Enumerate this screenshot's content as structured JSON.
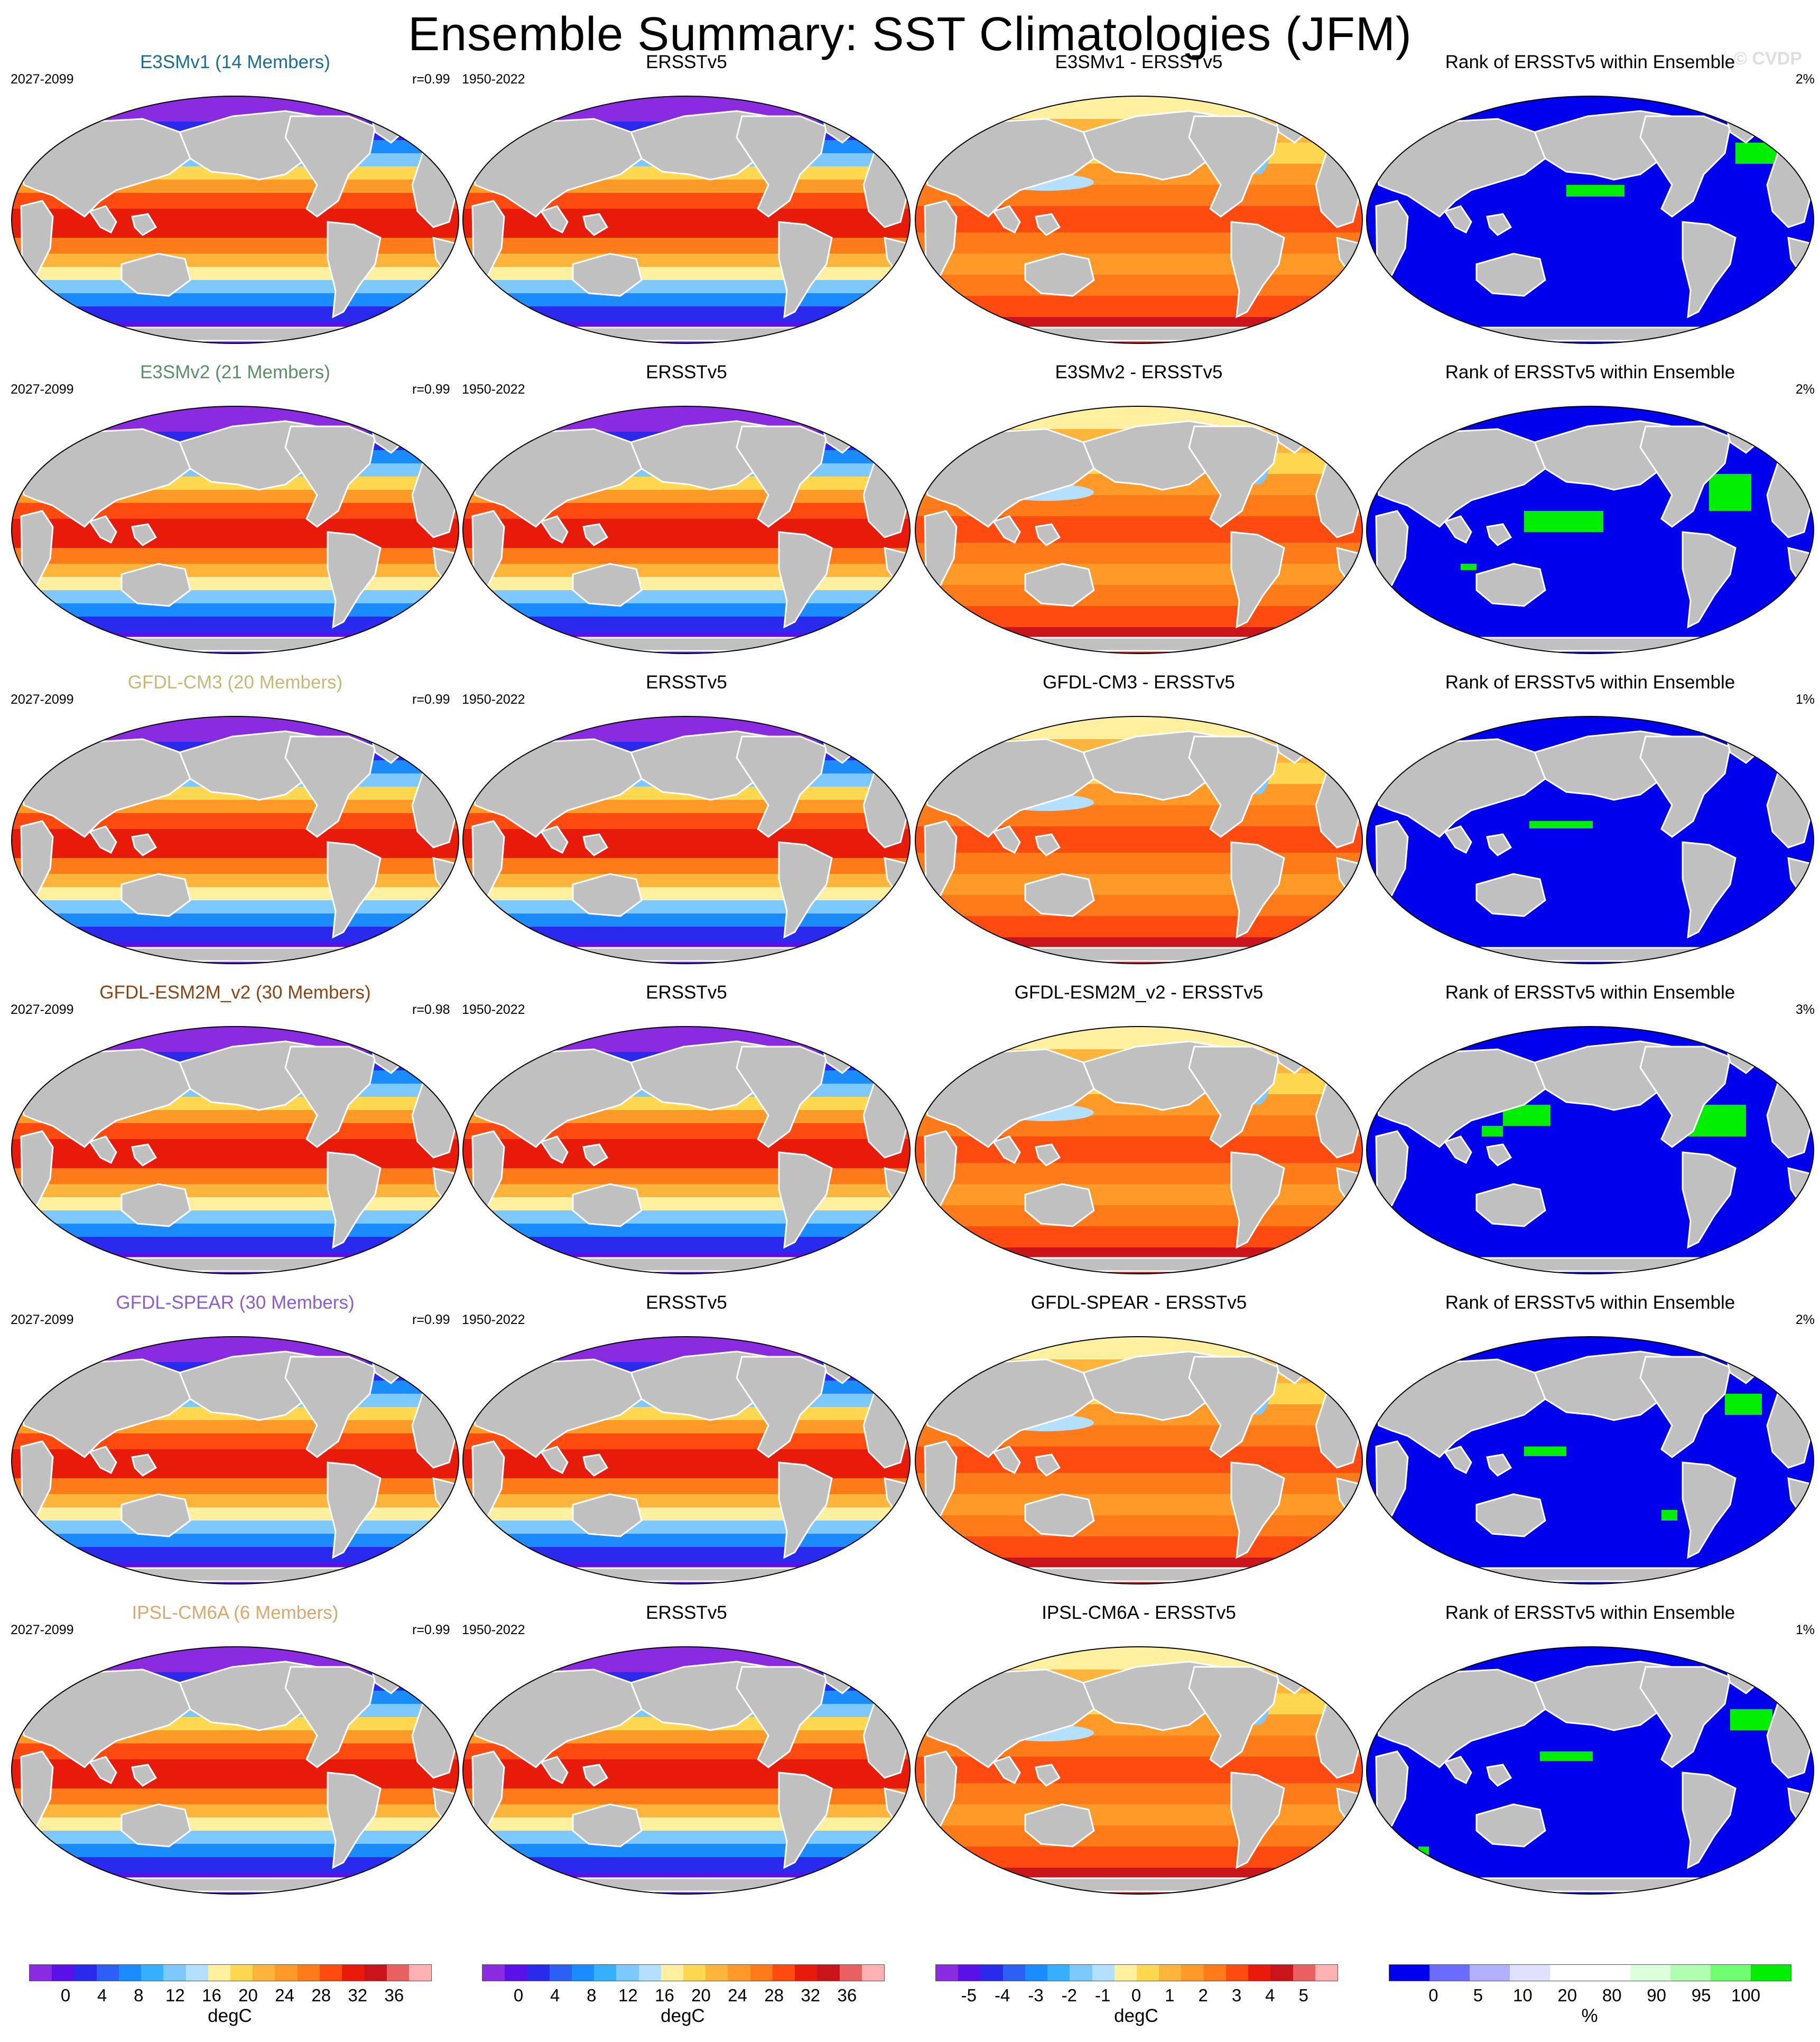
{
  "title": "Ensemble Summary: SST Climatologies (JFM)",
  "watermark": "© CVDP",
  "chart_data": {
    "type": "heatmap",
    "layout": "6 rows x 4 columns of global map panels",
    "rows": [
      {
        "model_title": "E3SMv1 (14 Members)",
        "title_color": "#1a6f8f",
        "model_years": "2027-2099",
        "pattern_corr": "r=0.99",
        "obs_title": "ERSSTv5",
        "obs_years": "1950-2022",
        "diff_title": "E3SMv1 - ERSSTv5",
        "rank_title": "Rank of ERSSTv5 within Ensemble",
        "rank_pct": "2%"
      },
      {
        "model_title": "E3SMv2 (21 Members)",
        "title_color": "#5b8f6a",
        "model_years": "2027-2099",
        "pattern_corr": "r=0.99",
        "obs_title": "ERSSTv5",
        "obs_years": "1950-2022",
        "diff_title": "E3SMv2 - ERSSTv5",
        "rank_title": "Rank of ERSSTv5 within Ensemble",
        "rank_pct": "2%"
      },
      {
        "model_title": "GFDL-CM3 (20 Members)",
        "title_color": "#c8b878",
        "model_years": "2027-2099",
        "pattern_corr": "r=0.99",
        "obs_title": "ERSSTv5",
        "obs_years": "1950-2022",
        "diff_title": "GFDL-CM3 - ERSSTv5",
        "rank_title": "Rank of ERSSTv5 within Ensemble",
        "rank_pct": "1%"
      },
      {
        "model_title": "GFDL-ESM2M_v2 (30 Members)",
        "title_color": "#8b4513",
        "model_years": "2027-2099",
        "pattern_corr": "r=0.98",
        "obs_title": "ERSSTv5",
        "obs_years": "1950-2022",
        "diff_title": "GFDL-ESM2M_v2 - ERSSTv5",
        "rank_title": "Rank of ERSSTv5 within Ensemble",
        "rank_pct": "3%"
      },
      {
        "model_title": "GFDL-SPEAR (30 Members)",
        "title_color": "#8a5cd6",
        "model_years": "2027-2099",
        "pattern_corr": "r=0.99",
        "obs_title": "ERSSTv5",
        "obs_years": "1950-2022",
        "diff_title": "GFDL-SPEAR - ERSSTv5",
        "rank_title": "Rank of ERSSTv5 within Ensemble",
        "rank_pct": "2%"
      },
      {
        "model_title": "IPSL-CM6A (6 Members)",
        "title_color": "#d9a86c",
        "model_years": "2027-2099",
        "pattern_corr": "r=0.99",
        "obs_title": "ERSSTv5",
        "obs_years": "1950-2022",
        "diff_title": "IPSL-CM6A - ERSSTv5",
        "rank_title": "Rank of ERSSTv5 within Ensemble",
        "rank_pct": "1%"
      }
    ],
    "colorbars": [
      {
        "unit": "degC",
        "colors": [
          "#8a2be2",
          "#5a10e8",
          "#2a2aee",
          "#2c5ff5",
          "#1a8cff",
          "#35b0ff",
          "#7cc8ff",
          "#b3e0ff",
          "#fff0a0",
          "#ffd84f",
          "#ffb43c",
          "#ff9a28",
          "#ff7a18",
          "#ff4a10",
          "#e81a0a",
          "#c8141a",
          "#e86060",
          "#ffb0b0"
        ],
        "tick_labels": [
          "0",
          "4",
          "8",
          "12",
          "16",
          "20",
          "24",
          "28",
          "32",
          "36"
        ]
      },
      {
        "unit": "degC",
        "colors": [
          "#8a2be2",
          "#5a10e8",
          "#2a2aee",
          "#2c5ff5",
          "#1a8cff",
          "#35b0ff",
          "#7cc8ff",
          "#b3e0ff",
          "#fff0a0",
          "#ffd84f",
          "#ffb43c",
          "#ff9a28",
          "#ff7a18",
          "#ff4a10",
          "#e81a0a",
          "#c8141a",
          "#e86060",
          "#ffb0b0"
        ],
        "tick_labels": [
          "0",
          "4",
          "8",
          "12",
          "16",
          "20",
          "24",
          "28",
          "32",
          "36"
        ]
      },
      {
        "unit": "degC",
        "colors": [
          "#8a2be2",
          "#5a10e8",
          "#2a2aee",
          "#2c5ff5",
          "#1a8cff",
          "#35b0ff",
          "#7cc8ff",
          "#b3e0ff",
          "#fff0a0",
          "#ffd84f",
          "#ffb43c",
          "#ff9a28",
          "#ff7a18",
          "#ff4a10",
          "#e81a0a",
          "#c8141a",
          "#e86060",
          "#ffb0b0"
        ],
        "tick_labels": [
          "-5",
          "-4",
          "-3",
          "-2",
          "-1",
          "0",
          "1",
          "2",
          "3",
          "4",
          "5"
        ]
      },
      {
        "unit": "%",
        "colors": [
          "#0000ee",
          "#6b6bff",
          "#b0b0ff",
          "#e0e0ff",
          "#ffffff",
          "#ffffff",
          "#dcffdc",
          "#b0ffb0",
          "#70ff70",
          "#00ee00"
        ],
        "tick_labels": [
          "0",
          "5",
          "10",
          "20",
          "80",
          "90",
          "95",
          "100"
        ]
      }
    ]
  }
}
